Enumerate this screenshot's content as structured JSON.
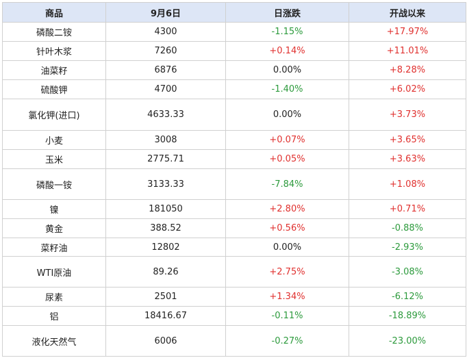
{
  "table": {
    "header": [
      "商品",
      "9月6日",
      "日涨跌",
      "开战以来"
    ],
    "rows": [
      [
        "磷酸二铵",
        "4300",
        "-1.15%",
        "+17.97%"
      ],
      [
        "针叶木浆",
        "7260",
        "+0.14%",
        "+11.01%"
      ],
      [
        "油菜籽",
        "6876",
        "0.00%",
        "+8.28%"
      ],
      [
        "硫酸钾",
        "4700",
        "-1.40%",
        "+6.02%"
      ],
      [
        "氯化钾(进口)",
        "4633.33",
        "0.00%",
        "+3.73%"
      ],
      [
        "小麦",
        "3008",
        "+0.07%",
        "+3.65%"
      ],
      [
        "玉米",
        "2775.71",
        "+0.05%",
        "+3.63%"
      ],
      [
        "磷酸一铵",
        "3133.33",
        "-7.84%",
        "+1.08%"
      ],
      [
        "镍",
        "181050",
        "+2.80%",
        "+0.71%"
      ],
      [
        "黄金",
        "388.52",
        "+0.56%",
        "-0.88%"
      ],
      [
        "菜籽油",
        "12802",
        "0.00%",
        "-2.93%"
      ],
      [
        "WTI原油",
        "89.26",
        "+2.75%",
        "-3.08%"
      ],
      [
        "尿素",
        "2501",
        "+1.34%",
        "-6.12%"
      ],
      [
        "铝",
        "18416.67",
        "-0.11%",
        "-18.89%"
      ],
      [
        "液化天然气",
        "6006",
        "-0.27%",
        "-23.00%"
      ]
    ]
  }
}
